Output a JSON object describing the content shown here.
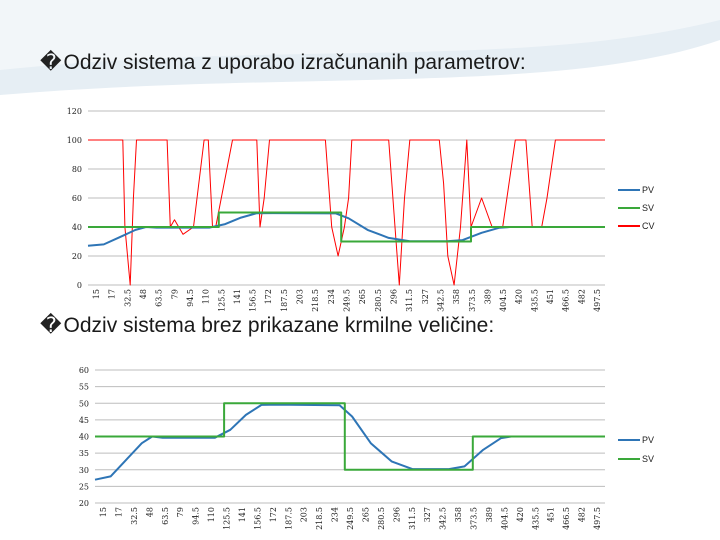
{
  "slide": {
    "heading1": "Odziv sistema z uporabo izračunanih parametrov:",
    "heading2": "Odziv sistema brez prikazane krmilne veličine:",
    "bullet_symbol": "�"
  },
  "colors": {
    "pv": "#2e75b6",
    "sv": "#3aa83a",
    "cv": "#ff0000",
    "grid": "#bdbdbd",
    "background_swoosh": "#dde8f0"
  },
  "chart_data": [
    {
      "type": "line",
      "title": "",
      "xlabel": "",
      "ylabel": "",
      "ylim": [
        0,
        120
      ],
      "yticks": [
        0,
        20,
        40,
        60,
        80,
        100,
        120
      ],
      "grid": "horizontal",
      "legend_position": "right",
      "x_tick_labels": [
        "15",
        "17",
        "32.5",
        "48",
        "63.5",
        "79",
        "94.5",
        "110",
        "125.5",
        "141",
        "156.5",
        "172",
        "187.5",
        "203",
        "218.5",
        "234",
        "249.5",
        "265",
        "280.5",
        "296",
        "311.5",
        "327",
        "342.5",
        "358",
        "373.5",
        "389",
        "404.5",
        "420",
        "435.5",
        "451",
        "466.5",
        "482",
        "497.5"
      ],
      "x_range": [
        15,
        505
      ],
      "series": [
        {
          "name": "PV",
          "points": [
            [
              15,
              27
            ],
            [
              30,
              28
            ],
            [
              45,
              33
            ],
            [
              60,
              38
            ],
            [
              70,
              40
            ],
            [
              80,
              39.6
            ],
            [
              130,
              39.6
            ],
            [
              145,
              42
            ],
            [
              160,
              46.5
            ],
            [
              175,
              49.5
            ],
            [
              190,
              49.6
            ],
            [
              250,
              49.4
            ],
            [
              262,
              46
            ],
            [
              280,
              38
            ],
            [
              300,
              32.5
            ],
            [
              320,
              30.2
            ],
            [
              355,
              30.2
            ],
            [
              370,
              31
            ],
            [
              388,
              36
            ],
            [
              405,
              39.5
            ],
            [
              415,
              40
            ],
            [
              505,
              40
            ]
          ]
        },
        {
          "name": "SV",
          "points": [
            [
              15,
              40
            ],
            [
              139,
              40
            ],
            [
              139,
              50
            ],
            [
              255,
              50
            ],
            [
              255,
              30
            ],
            [
              378,
              30
            ],
            [
              378,
              40
            ],
            [
              505,
              40
            ]
          ]
        },
        {
          "name": "CV",
          "points": [
            [
              15,
              100
            ],
            [
              48,
              100
            ],
            [
              50,
              40
            ],
            [
              55,
              0
            ],
            [
              58,
              60
            ],
            [
              61,
              100
            ],
            [
              90,
              100
            ],
            [
              93,
              40
            ],
            [
              97,
              45
            ],
            [
              101,
              40
            ],
            [
              105,
              35
            ],
            [
              115,
              40
            ],
            [
              125,
              100
            ],
            [
              129,
              100
            ],
            [
              133,
              40
            ],
            [
              136,
              40
            ],
            [
              152,
              100
            ],
            [
              175,
              100
            ],
            [
              178,
              40
            ],
            [
              182,
              60
            ],
            [
              187,
              100
            ],
            [
              240,
              100
            ],
            [
              246,
              40
            ],
            [
              252,
              20
            ],
            [
              258,
              40
            ],
            [
              262,
              60
            ],
            [
              265,
              100
            ],
            [
              300,
              100
            ],
            [
              306,
              40
            ],
            [
              310,
              0
            ],
            [
              315,
              60
            ],
            [
              320,
              100
            ],
            [
              348,
              100
            ],
            [
              352,
              70
            ],
            [
              356,
              20
            ],
            [
              362,
              0
            ],
            [
              368,
              40
            ],
            [
              374,
              100
            ],
            [
              378,
              40
            ],
            [
              388,
              60
            ],
            [
              398,
              40
            ],
            [
              408,
              40
            ],
            [
              420,
              100
            ],
            [
              430,
              100
            ],
            [
              436,
              40
            ],
            [
              445,
              40
            ],
            [
              450,
              60
            ],
            [
              458,
              100
            ],
            [
              505,
              100
            ]
          ]
        }
      ]
    },
    {
      "type": "line",
      "title": "",
      "xlabel": "",
      "ylabel": "",
      "ylim": [
        20,
        60
      ],
      "yticks": [
        20,
        25,
        30,
        35,
        40,
        45,
        50,
        55,
        60
      ],
      "grid": "horizontal",
      "legend_position": "right",
      "x_tick_labels": [
        "15",
        "17",
        "32.5",
        "48",
        "63.5",
        "79",
        "94.5",
        "110",
        "125.5",
        "141",
        "156.5",
        "172",
        "187.5",
        "203",
        "218.5",
        "234",
        "249.5",
        "265",
        "280.5",
        "296",
        "311.5",
        "327",
        "342.5",
        "358",
        "373.5",
        "389",
        "404.5",
        "420",
        "435.5",
        "451",
        "466.5",
        "482",
        "497.5"
      ],
      "x_range": [
        15,
        505
      ],
      "series": [
        {
          "name": "PV",
          "points": [
            [
              15,
              27
            ],
            [
              30,
              28
            ],
            [
              45,
              33
            ],
            [
              60,
              38
            ],
            [
              70,
              40
            ],
            [
              80,
              39.6
            ],
            [
              130,
              39.6
            ],
            [
              145,
              42
            ],
            [
              160,
              46.5
            ],
            [
              175,
              49.5
            ],
            [
              190,
              49.6
            ],
            [
              250,
              49.4
            ],
            [
              262,
              46
            ],
            [
              280,
              38
            ],
            [
              300,
              32.5
            ],
            [
              320,
              30.2
            ],
            [
              355,
              30.2
            ],
            [
              370,
              31
            ],
            [
              388,
              36
            ],
            [
              405,
              39.5
            ],
            [
              415,
              40
            ],
            [
              505,
              40
            ]
          ]
        },
        {
          "name": "SV",
          "points": [
            [
              15,
              40
            ],
            [
              139,
              40
            ],
            [
              139,
              50
            ],
            [
              255,
              50
            ],
            [
              255,
              30
            ],
            [
              378,
              30
            ],
            [
              378,
              40
            ],
            [
              505,
              40
            ]
          ]
        }
      ]
    }
  ]
}
